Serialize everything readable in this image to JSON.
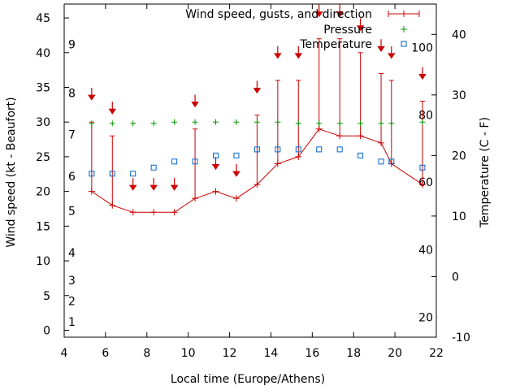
{
  "chart_data": {
    "type": "line",
    "xlabel": "Local time (Europe/Athens)",
    "ylabel_left": "Wind speed (kt - Beaufort)",
    "ylabel_right": "Temperature (C - F)",
    "xlim": [
      4,
      22
    ],
    "ylim_left": [
      -1,
      47
    ],
    "ylim_right": [
      -10,
      45
    ],
    "x_ticks": [
      "4",
      "6",
      "8",
      "10",
      "12",
      "14",
      "16",
      "18",
      "20",
      "22"
    ],
    "y_left_ticks": [
      "0",
      "5",
      "10",
      "15",
      "20",
      "25",
      "30",
      "35",
      "40",
      "45"
    ],
    "y_right_ticks": [
      "-10",
      "0",
      "10",
      "20",
      "30",
      "40"
    ],
    "beaufort_scale": [
      {
        "label": "1",
        "kt": 1.2
      },
      {
        "label": "2",
        "kt": 4.2
      },
      {
        "label": "3",
        "kt": 7.2
      },
      {
        "label": "4",
        "kt": 11.2
      },
      {
        "label": "5",
        "kt": 17.2
      },
      {
        "label": "6",
        "kt": 22.2
      },
      {
        "label": "7",
        "kt": 28.2
      },
      {
        "label": "8",
        "kt": 34.2
      },
      {
        "label": "9",
        "kt": 41.2
      }
    ],
    "fahrenheit_scale": [
      {
        "label": "20",
        "celsius": -6.7
      },
      {
        "label": "40",
        "celsius": 4.4
      },
      {
        "label": "60",
        "celsius": 15.6
      },
      {
        "label": "80",
        "celsius": 26.7
      },
      {
        "label": "100",
        "celsius": 37.8
      }
    ],
    "legend": {
      "position": "top-right",
      "entries": [
        "Wind speed, gusts, and direction",
        "Pressure",
        "Temperature"
      ]
    },
    "colors": {
      "wind": "#cc0000",
      "pressure": "#009900",
      "temperature": "#0066cc"
    },
    "x": [
      5.33,
      6.33,
      7.33,
      8.33,
      9.33,
      10.33,
      11.33,
      12.33,
      13.33,
      14.33,
      15.33,
      16.33,
      17.33,
      18.33,
      19.33,
      19.83,
      21.33
    ],
    "wind_speed": [
      20,
      18,
      17,
      17,
      17,
      19,
      20,
      19,
      21,
      24,
      25,
      29,
      28,
      28,
      27,
      24,
      21
    ],
    "wind_gust": [
      30,
      28,
      null,
      null,
      null,
      29,
      null,
      null,
      31,
      36,
      36,
      42,
      42,
      40,
      37,
      36,
      33
    ],
    "wind_arrow_kt": [
      34,
      32,
      21,
      21,
      21,
      33,
      24,
      23,
      35,
      40,
      40,
      46,
      46,
      44,
      41,
      40,
      37
    ],
    "pressure_y": [
      29.8,
      29.8,
      29.8,
      29.8,
      30,
      30,
      30,
      30,
      30,
      30,
      29.8,
      29.8,
      29.8,
      29.8,
      29.8,
      29.8,
      30
    ],
    "temperature_c": [
      17,
      17,
      17,
      18,
      19,
      19,
      20,
      20,
      21,
      21,
      21,
      21,
      21,
      20,
      19,
      19,
      18
    ]
  }
}
